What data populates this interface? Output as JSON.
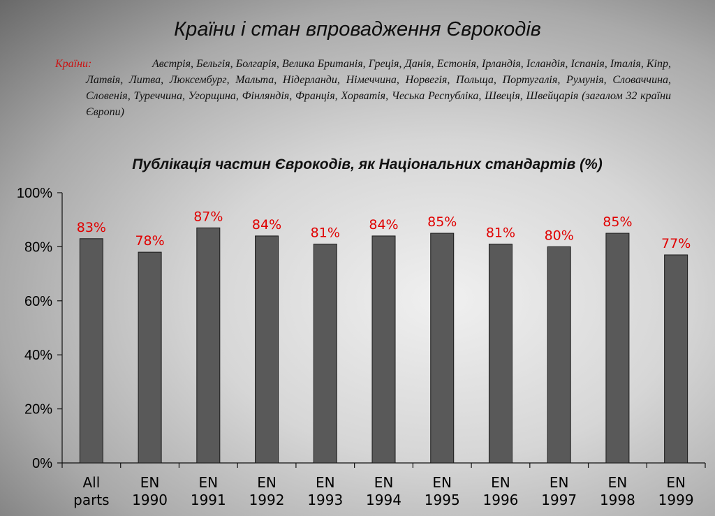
{
  "slide": {
    "title": "Країни і стан впровадження Єврокодів",
    "countries_label": "Країни:",
    "countries_text": "Австрія, Бельгія, Болгарія, Велика Британія, Греція, Данія, Естонія, Ірландія, Ісландія, Іспанія, Італія, Кіпр, Латвія, Литва, Люксембург, Мальта, Нідерланди, Німеччина, Норвегія, Польща, Португалія, Румунія, Словаччина, Словенія, Туреччина, Угорщина, Фінляндія, Франція, Хорватія, Чеська Республіка, Швеція, Швейцарія (загалом 32 країни Європи)"
  },
  "chart_data": {
    "type": "bar",
    "title": "Публікація частин Єврокодів, як Національних стандартів (%)",
    "categories": [
      [
        "All",
        "parts"
      ],
      [
        "EN",
        "1990"
      ],
      [
        "EN",
        "1991"
      ],
      [
        "EN",
        "1992"
      ],
      [
        "EN",
        "1993"
      ],
      [
        "EN",
        "1994"
      ],
      [
        "EN",
        "1995"
      ],
      [
        "EN",
        "1996"
      ],
      [
        "EN",
        "1997"
      ],
      [
        "EN",
        "1998"
      ],
      [
        "EN",
        "1999"
      ]
    ],
    "values": [
      83,
      78,
      87,
      84,
      81,
      84,
      85,
      81,
      80,
      85,
      77
    ],
    "data_labels": [
      "83%",
      "78%",
      "87%",
      "84%",
      "81%",
      "84%",
      "85%",
      "81%",
      "80%",
      "85%",
      "77%"
    ],
    "ylim": [
      0,
      100
    ],
    "yticks": [
      0,
      20,
      40,
      60,
      80,
      100
    ],
    "ytick_labels": [
      "0%",
      "20%",
      "40%",
      "60%",
      "80%",
      "100%"
    ],
    "xlabel": "",
    "ylabel": "",
    "grid": false,
    "legend": "none",
    "colors": {
      "bar_fill": "#595959",
      "bar_stroke": "#1a1a1a",
      "data_label": "#e00000",
      "axis": "#111111"
    }
  }
}
